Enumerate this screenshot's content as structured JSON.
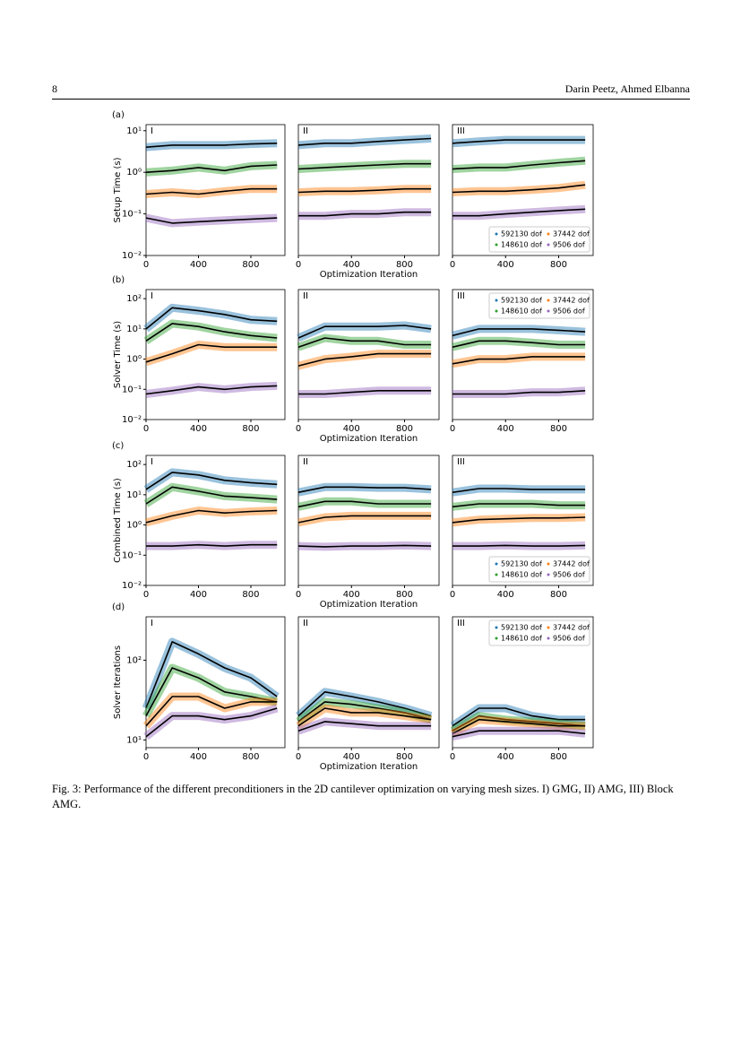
{
  "header": {
    "page_number": "8",
    "authors": "Darin Peetz, Ahmed Elbanna"
  },
  "chart_data": [
    {
      "type": "line",
      "row_label": "(a)",
      "panel": "I",
      "ylabel": "Setup Time (s)",
      "log_y": true,
      "x": [
        0,
        200,
        400,
        600,
        800,
        1000
      ],
      "xlim": [
        0,
        1060
      ],
      "xticks": [
        0,
        400,
        800
      ],
      "ylim": [
        0.01,
        14
      ],
      "yticks": [
        {
          "value": 0.01,
          "label": "10⁻²"
        },
        {
          "value": 0.1,
          "label": "10⁻¹"
        },
        {
          "value": 1,
          "label": "10⁰"
        },
        {
          "value": 10,
          "label": "10¹"
        }
      ],
      "series": [
        {
          "color": "#1f77b4",
          "values": [
            4,
            4.5,
            4.5,
            4.5,
            4.8,
            5
          ]
        },
        {
          "color": "#2ca02c",
          "values": [
            1,
            1.1,
            1.3,
            1.1,
            1.4,
            1.5
          ]
        },
        {
          "color": "#ff7f0e",
          "values": [
            0.3,
            0.33,
            0.3,
            0.35,
            0.4,
            0.4
          ]
        },
        {
          "color": "#9467bd",
          "values": [
            0.08,
            0.06,
            0.065,
            0.07,
            0.075,
            0.08
          ]
        }
      ]
    },
    {
      "type": "line",
      "panel": "II",
      "xlabel": "Optimization Iteration",
      "log_y": true,
      "x": [
        0,
        200,
        400,
        600,
        800,
        1000
      ],
      "xlim": [
        0,
        1060
      ],
      "xticks": [
        0,
        400,
        800
      ],
      "ylim": [
        0.01,
        14
      ],
      "series": [
        {
          "color": "#1f77b4",
          "values": [
            4.5,
            5,
            5,
            5.5,
            6,
            6.5
          ]
        },
        {
          "color": "#2ca02c",
          "values": [
            1.2,
            1.3,
            1.4,
            1.5,
            1.6,
            1.6
          ]
        },
        {
          "color": "#ff7f0e",
          "values": [
            0.33,
            0.35,
            0.35,
            0.37,
            0.4,
            0.4
          ]
        },
        {
          "color": "#9467bd",
          "values": [
            0.09,
            0.09,
            0.1,
            0.1,
            0.11,
            0.11
          ]
        }
      ]
    },
    {
      "type": "line",
      "panel": "III",
      "legend": "lower right",
      "log_y": true,
      "x": [
        0,
        200,
        400,
        600,
        800,
        1000
      ],
      "xlim": [
        0,
        1060
      ],
      "xticks": [
        0,
        400,
        800
      ],
      "ylim": [
        0.01,
        14
      ],
      "series": [
        {
          "name": "592130 dof",
          "color": "#1f77b4",
          "values": [
            5,
            5.5,
            6,
            6,
            6,
            6
          ]
        },
        {
          "name": "148610 dof",
          "color": "#2ca02c",
          "values": [
            1.2,
            1.3,
            1.3,
            1.5,
            1.7,
            1.9
          ]
        },
        {
          "name": "37442 dof",
          "color": "#ff7f0e",
          "values": [
            0.33,
            0.35,
            0.35,
            0.38,
            0.42,
            0.5
          ]
        },
        {
          "name": "9506 dof",
          "color": "#9467bd",
          "values": [
            0.09,
            0.09,
            0.1,
            0.11,
            0.12,
            0.13
          ]
        }
      ]
    },
    {
      "type": "line",
      "row_label": "(b)",
      "panel": "I",
      "ylabel": "Solver Time (s)",
      "log_y": true,
      "x": [
        0,
        200,
        400,
        600,
        800,
        1000
      ],
      "xlim": [
        0,
        1060
      ],
      "xticks": [
        0,
        400,
        800
      ],
      "ylim": [
        0.01,
        200
      ],
      "yticks": [
        {
          "value": 0.01,
          "label": "10⁻²"
        },
        {
          "value": 0.1,
          "label": "10⁻¹"
        },
        {
          "value": 1,
          "label": "10⁰"
        },
        {
          "value": 10,
          "label": "10¹"
        },
        {
          "value": 100,
          "label": "10²"
        }
      ],
      "series": [
        {
          "color": "#1f77b4",
          "values": [
            10,
            50,
            40,
            30,
            20,
            18
          ]
        },
        {
          "color": "#2ca02c",
          "values": [
            4,
            15,
            12,
            8,
            6,
            5
          ]
        },
        {
          "color": "#ff7f0e",
          "values": [
            0.8,
            1.5,
            3,
            2.5,
            2.5,
            2.5
          ]
        },
        {
          "color": "#9467bd",
          "values": [
            0.07,
            0.09,
            0.12,
            0.1,
            0.12,
            0.13
          ]
        }
      ]
    },
    {
      "type": "line",
      "panel": "II",
      "xlabel": "Optimization Iteration",
      "log_y": true,
      "x": [
        0,
        200,
        400,
        600,
        800,
        1000
      ],
      "xlim": [
        0,
        1060
      ],
      "xticks": [
        0,
        400,
        800
      ],
      "ylim": [
        0.01,
        200
      ],
      "series": [
        {
          "color": "#1f77b4",
          "values": [
            5,
            12,
            12,
            12,
            13,
            10
          ]
        },
        {
          "color": "#2ca02c",
          "values": [
            2.5,
            5,
            4,
            4,
            3,
            3
          ]
        },
        {
          "color": "#ff7f0e",
          "values": [
            0.6,
            1,
            1.2,
            1.5,
            1.5,
            1.5
          ]
        },
        {
          "color": "#9467bd",
          "values": [
            0.07,
            0.07,
            0.08,
            0.09,
            0.09,
            0.09
          ]
        }
      ]
    },
    {
      "type": "line",
      "panel": "III",
      "legend": "upper right",
      "log_y": true,
      "x": [
        0,
        200,
        400,
        600,
        800,
        1000
      ],
      "xlim": [
        0,
        1060
      ],
      "xticks": [
        0,
        400,
        800
      ],
      "ylim": [
        0.01,
        200
      ],
      "series": [
        {
          "name": "592130 dof",
          "color": "#1f77b4",
          "values": [
            6,
            10,
            10,
            10,
            9,
            8
          ]
        },
        {
          "name": "148610 dof",
          "color": "#2ca02c",
          "values": [
            2.5,
            4,
            4,
            3.5,
            3,
            3
          ]
        },
        {
          "name": "37442 dof",
          "color": "#ff7f0e",
          "values": [
            0.7,
            1,
            1,
            1.2,
            1.2,
            1.2
          ]
        },
        {
          "name": "9506 dof",
          "color": "#9467bd",
          "values": [
            0.07,
            0.07,
            0.07,
            0.08,
            0.08,
            0.09
          ]
        }
      ]
    },
    {
      "type": "line",
      "row_label": "(c)",
      "panel": "I",
      "ylabel": "Combined Time (s)",
      "log_y": true,
      "x": [
        0,
        200,
        400,
        600,
        800,
        1000
      ],
      "xlim": [
        0,
        1060
      ],
      "xticks": [
        0,
        400,
        800
      ],
      "ylim": [
        0.01,
        200
      ],
      "yticks": [
        {
          "value": 0.01,
          "label": "10⁻²"
        },
        {
          "value": 0.1,
          "label": "10⁻¹"
        },
        {
          "value": 1,
          "label": "10⁰"
        },
        {
          "value": 10,
          "label": "10¹"
        },
        {
          "value": 100,
          "label": "10²"
        }
      ],
      "series": [
        {
          "color": "#1f77b4",
          "values": [
            15,
            55,
            45,
            30,
            25,
            22
          ]
        },
        {
          "color": "#2ca02c",
          "values": [
            5,
            18,
            13,
            9,
            8,
            7
          ]
        },
        {
          "color": "#ff7f0e",
          "values": [
            1.2,
            2,
            3,
            2.5,
            2.8,
            3
          ]
        },
        {
          "color": "#9467bd",
          "values": [
            0.2,
            0.2,
            0.22,
            0.2,
            0.22,
            0.22
          ]
        }
      ]
    },
    {
      "type": "line",
      "panel": "II",
      "xlabel": "Optimization Iteration",
      "log_y": true,
      "x": [
        0,
        200,
        400,
        600,
        800,
        1000
      ],
      "xlim": [
        0,
        1060
      ],
      "xticks": [
        0,
        400,
        800
      ],
      "ylim": [
        0.01,
        200
      ],
      "series": [
        {
          "color": "#1f77b4",
          "values": [
            12,
            18,
            18,
            17,
            17,
            15
          ]
        },
        {
          "color": "#2ca02c",
          "values": [
            4,
            6,
            6,
            5,
            5,
            5
          ]
        },
        {
          "color": "#ff7f0e",
          "values": [
            1.2,
            1.8,
            2,
            2,
            2,
            2
          ]
        },
        {
          "color": "#9467bd",
          "values": [
            0.2,
            0.19,
            0.2,
            0.2,
            0.21,
            0.2
          ]
        }
      ]
    },
    {
      "type": "line",
      "panel": "III",
      "legend": "lower right",
      "log_y": true,
      "x": [
        0,
        200,
        400,
        600,
        800,
        1000
      ],
      "xlim": [
        0,
        1060
      ],
      "xticks": [
        0,
        400,
        800
      ],
      "ylim": [
        0.01,
        200
      ],
      "series": [
        {
          "name": "592130 dof",
          "color": "#1f77b4",
          "values": [
            12,
            16,
            16,
            15,
            15,
            15
          ]
        },
        {
          "name": "148610 dof",
          "color": "#2ca02c",
          "values": [
            4,
            5,
            5,
            5,
            4.5,
            4.5
          ]
        },
        {
          "name": "37442 dof",
          "color": "#ff7f0e",
          "values": [
            1.2,
            1.5,
            1.6,
            1.7,
            1.7,
            1.8
          ]
        },
        {
          "name": "9506 dof",
          "color": "#9467bd",
          "values": [
            0.2,
            0.2,
            0.21,
            0.2,
            0.2,
            0.21
          ]
        }
      ]
    },
    {
      "type": "line",
      "row_label": "(d)",
      "panel": "I",
      "ylabel": "Solver Iterations",
      "log_y": true,
      "x": [
        0,
        200,
        400,
        600,
        800,
        1000
      ],
      "xlim": [
        0,
        1060
      ],
      "xticks": [
        0,
        400,
        800
      ],
      "ylim": [
        8,
        350
      ],
      "yticks": [
        {
          "value": 10,
          "label": "10¹"
        },
        {
          "value": 100,
          "label": "10²"
        }
      ],
      "series": [
        {
          "color": "#1f77b4",
          "values": [
            25,
            170,
            120,
            80,
            60,
            35
          ]
        },
        {
          "color": "#2ca02c",
          "values": [
            20,
            80,
            60,
            40,
            35,
            30
          ]
        },
        {
          "color": "#ff7f0e",
          "values": [
            15,
            35,
            35,
            25,
            30,
            30
          ]
        },
        {
          "color": "#9467bd",
          "values": [
            11,
            20,
            20,
            18,
            20,
            25
          ]
        }
      ]
    },
    {
      "type": "line",
      "panel": "II",
      "xlabel": "Optimization Iteration",
      "log_y": true,
      "x": [
        0,
        200,
        400,
        600,
        800,
        1000
      ],
      "xlim": [
        0,
        1060
      ],
      "xticks": [
        0,
        400,
        800
      ],
      "ylim": [
        8,
        350
      ],
      "series": [
        {
          "color": "#1f77b4",
          "values": [
            20,
            40,
            35,
            30,
            25,
            20
          ]
        },
        {
          "color": "#2ca02c",
          "values": [
            17,
            30,
            28,
            25,
            22,
            18
          ]
        },
        {
          "color": "#ff7f0e",
          "values": [
            15,
            25,
            22,
            22,
            20,
            18
          ]
        },
        {
          "color": "#9467bd",
          "values": [
            13,
            17,
            16,
            15,
            15,
            15
          ]
        }
      ]
    },
    {
      "type": "line",
      "panel": "III",
      "legend": "upper right",
      "log_y": true,
      "x": [
        0,
        200,
        400,
        600,
        800,
        1000
      ],
      "xlim": [
        0,
        1060
      ],
      "xticks": [
        0,
        400,
        800
      ],
      "ylim": [
        8,
        350
      ],
      "series": [
        {
          "name": "592130 dof",
          "color": "#1f77b4",
          "values": [
            15,
            25,
            25,
            20,
            18,
            18
          ]
        },
        {
          "name": "148610 dof",
          "color": "#2ca02c",
          "values": [
            13,
            20,
            18,
            17,
            16,
            15
          ]
        },
        {
          "name": "37442 dof",
          "color": "#ff7f0e",
          "values": [
            12,
            18,
            17,
            16,
            15,
            15
          ]
        },
        {
          "name": "9506 dof",
          "color": "#9467bd",
          "values": [
            11,
            13,
            13,
            13,
            13,
            12
          ]
        }
      ]
    }
  ],
  "caption": "Fig. 3: Performance of the different preconditioners in the 2D cantilever optimization on varying mesh sizes. I) GMG, II) AMG, III) Block AMG."
}
